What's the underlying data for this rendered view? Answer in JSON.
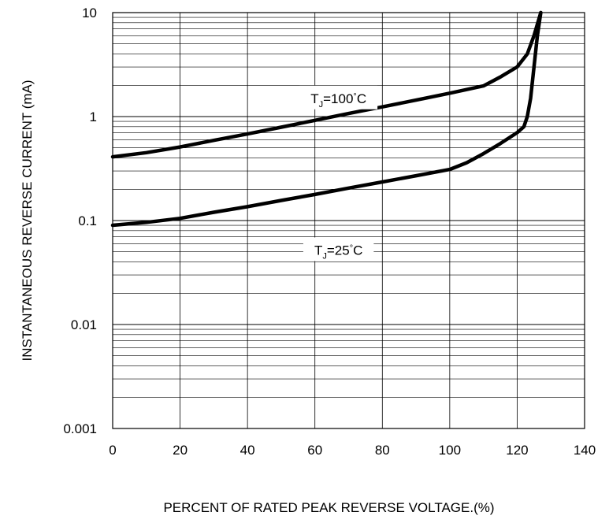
{
  "chart_data": {
    "type": "line",
    "title": "",
    "xlabel": "PERCENT OF RATED PEAK REVERSE VOLTAGE.(%)",
    "ylabel": "INSTANTANEOUS REVERSE CURRENT (mA)",
    "xlim": [
      0,
      140
    ],
    "ylim": [
      0.001,
      10
    ],
    "yscale": "log",
    "grid": true,
    "x_ticks": [
      "0",
      "20",
      "40",
      "60",
      "80",
      "100",
      "120",
      "140"
    ],
    "y_ticks": [
      "0.001",
      "0.01",
      "0.1",
      "1",
      "10"
    ],
    "series": [
      {
        "name_parts": [
          "T",
          "J",
          "=100",
          "°",
          "C"
        ],
        "label_x": 67,
        "label_y": 1.5,
        "x": [
          0,
          10,
          20,
          30,
          40,
          50,
          60,
          70,
          80,
          90,
          100,
          110,
          115,
          120,
          123,
          125,
          127
        ],
        "y": [
          0.41,
          0.45,
          0.51,
          0.59,
          0.68,
          0.79,
          0.92,
          1.07,
          1.24,
          1.44,
          1.68,
          1.97,
          2.4,
          3.0,
          4.0,
          6.0,
          10.0
        ]
      },
      {
        "name_parts": [
          "T",
          "J",
          "=25",
          "°",
          "C"
        ],
        "label_x": 67,
        "label_y": 0.052,
        "x": [
          0,
          10,
          20,
          30,
          40,
          50,
          60,
          70,
          80,
          90,
          100,
          105,
          110,
          115,
          120,
          122,
          123,
          124,
          125,
          126,
          127
        ],
        "y": [
          0.09,
          0.096,
          0.105,
          0.12,
          0.136,
          0.156,
          0.178,
          0.205,
          0.235,
          0.27,
          0.31,
          0.36,
          0.44,
          0.55,
          0.7,
          0.8,
          1.0,
          1.5,
          3.0,
          6.0,
          10.0
        ]
      }
    ]
  }
}
